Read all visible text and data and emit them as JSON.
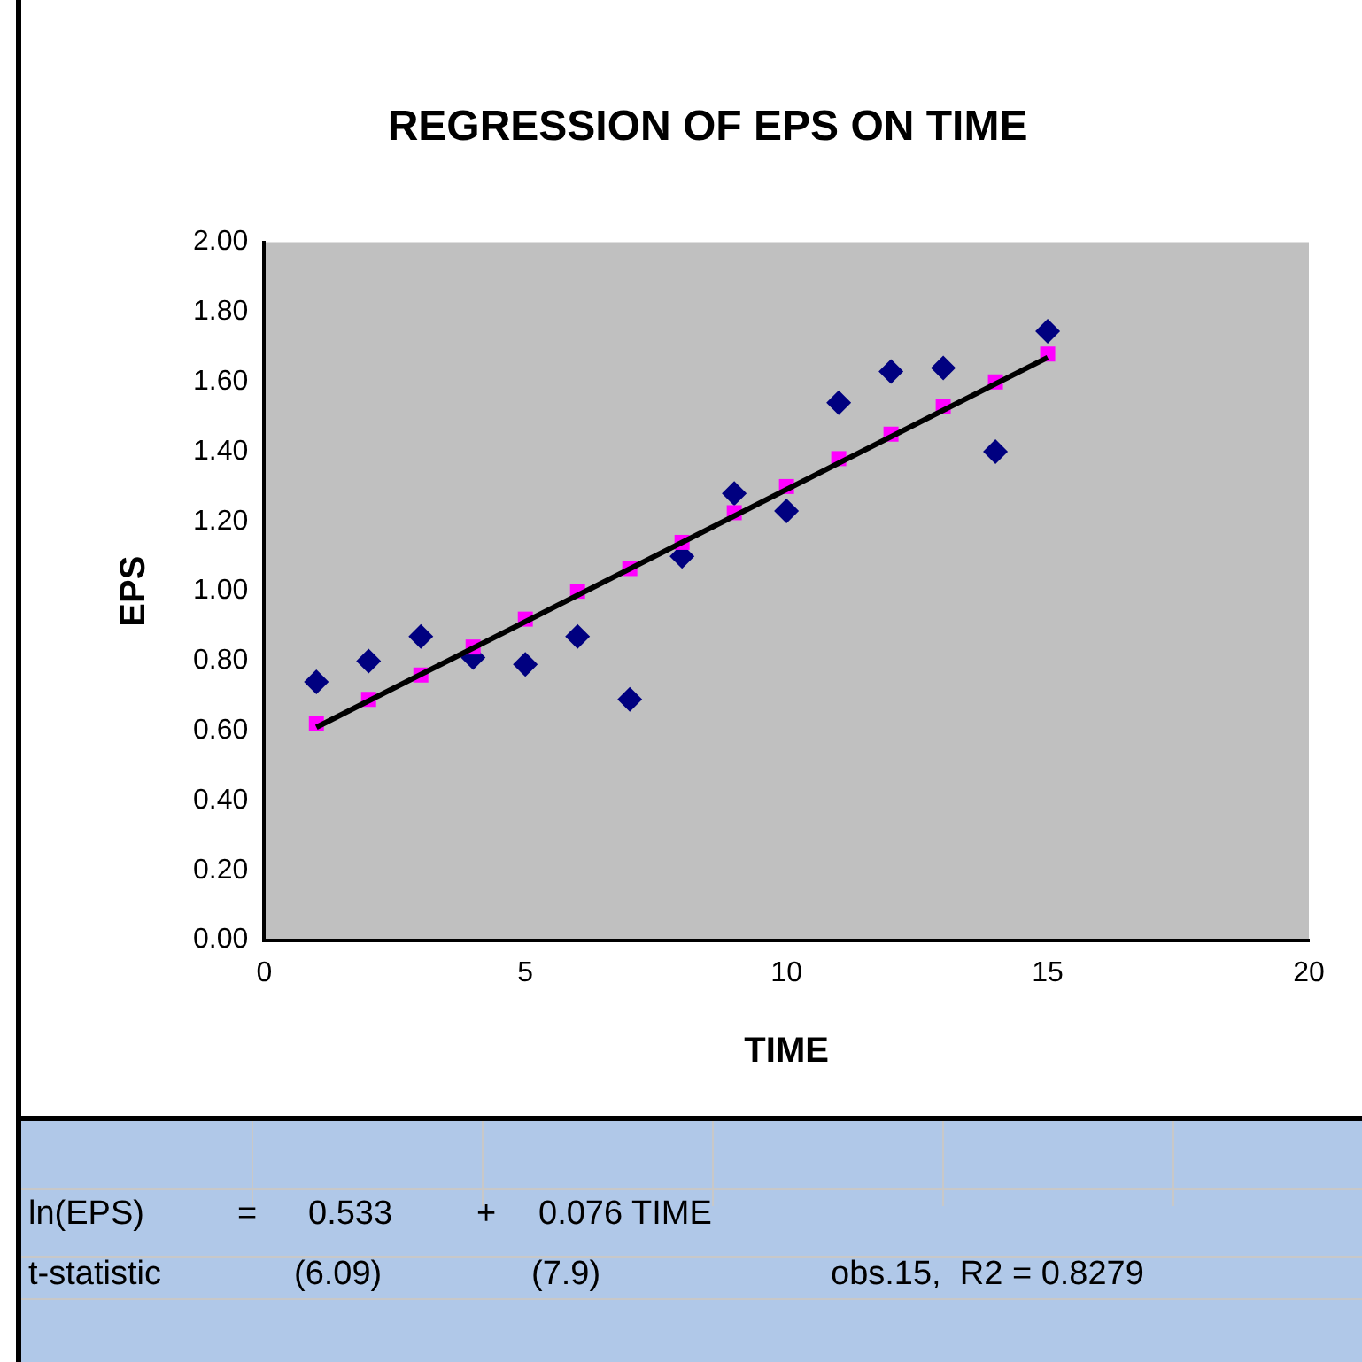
{
  "chart_data": {
    "type": "scatter",
    "title": "REGRESSION OF EPS ON TIME",
    "xlabel": "TIME",
    "ylabel": "EPS",
    "xlim": [
      0,
      20
    ],
    "xticks": [
      0,
      5,
      10,
      15,
      20
    ],
    "ylim": [
      0,
      2
    ],
    "yticks": [
      {
        "value": 0,
        "label": "0.00"
      },
      {
        "value": 0.2,
        "label": "0.20"
      },
      {
        "value": 0.4,
        "label": "0.40"
      },
      {
        "value": 0.6,
        "label": "0.60"
      },
      {
        "value": 0.8,
        "label": "0.80"
      },
      {
        "value": 1,
        "label": "1.00"
      },
      {
        "value": 1.2,
        "label": "1.20"
      },
      {
        "value": 1.4,
        "label": "1.40"
      },
      {
        "value": 1.6,
        "label": "1.60"
      },
      {
        "value": 1.8,
        "label": "1.80"
      },
      {
        "value": 2,
        "label": "2.00"
      }
    ],
    "grid": false,
    "legend": false,
    "series": [
      {
        "type": "line",
        "color": "#000000",
        "marker": "none",
        "line_style": "solid",
        "x": [
          1,
          15
        ],
        "values": [
          0.61,
          1.67
        ]
      },
      {
        "type": "scatter",
        "color": "#000080",
        "marker": "diamond",
        "x": [
          1,
          2,
          3,
          4,
          5,
          6,
          7,
          8,
          9,
          10,
          11,
          12,
          13,
          14,
          15
        ],
        "values": [
          0.74,
          0.8,
          0.87,
          0.81,
          0.79,
          0.87,
          0.69,
          1.1,
          1.28,
          1.23,
          1.54,
          1.63,
          1.64,
          1.4,
          1.745
        ]
      },
      {
        "type": "scatter",
        "color": "#ff00ff",
        "marker": "square",
        "x": [
          1,
          2,
          3,
          4,
          5,
          6,
          7,
          8,
          9,
          10,
          11,
          12,
          13,
          14,
          15
        ],
        "values": [
          0.62,
          0.69,
          0.76,
          0.84,
          0.92,
          1.0,
          1.065,
          1.14,
          1.225,
          1.3,
          1.38,
          1.45,
          1.53,
          1.6,
          1.68
        ]
      }
    ],
    "annotations": [
      "ln(EPS)",
      "=",
      "0.533",
      "+",
      "0.076 TIME",
      "t-statistic",
      "(6.09)",
      "(7.9)",
      "obs.15,  R2 = 0.8279"
    ]
  }
}
